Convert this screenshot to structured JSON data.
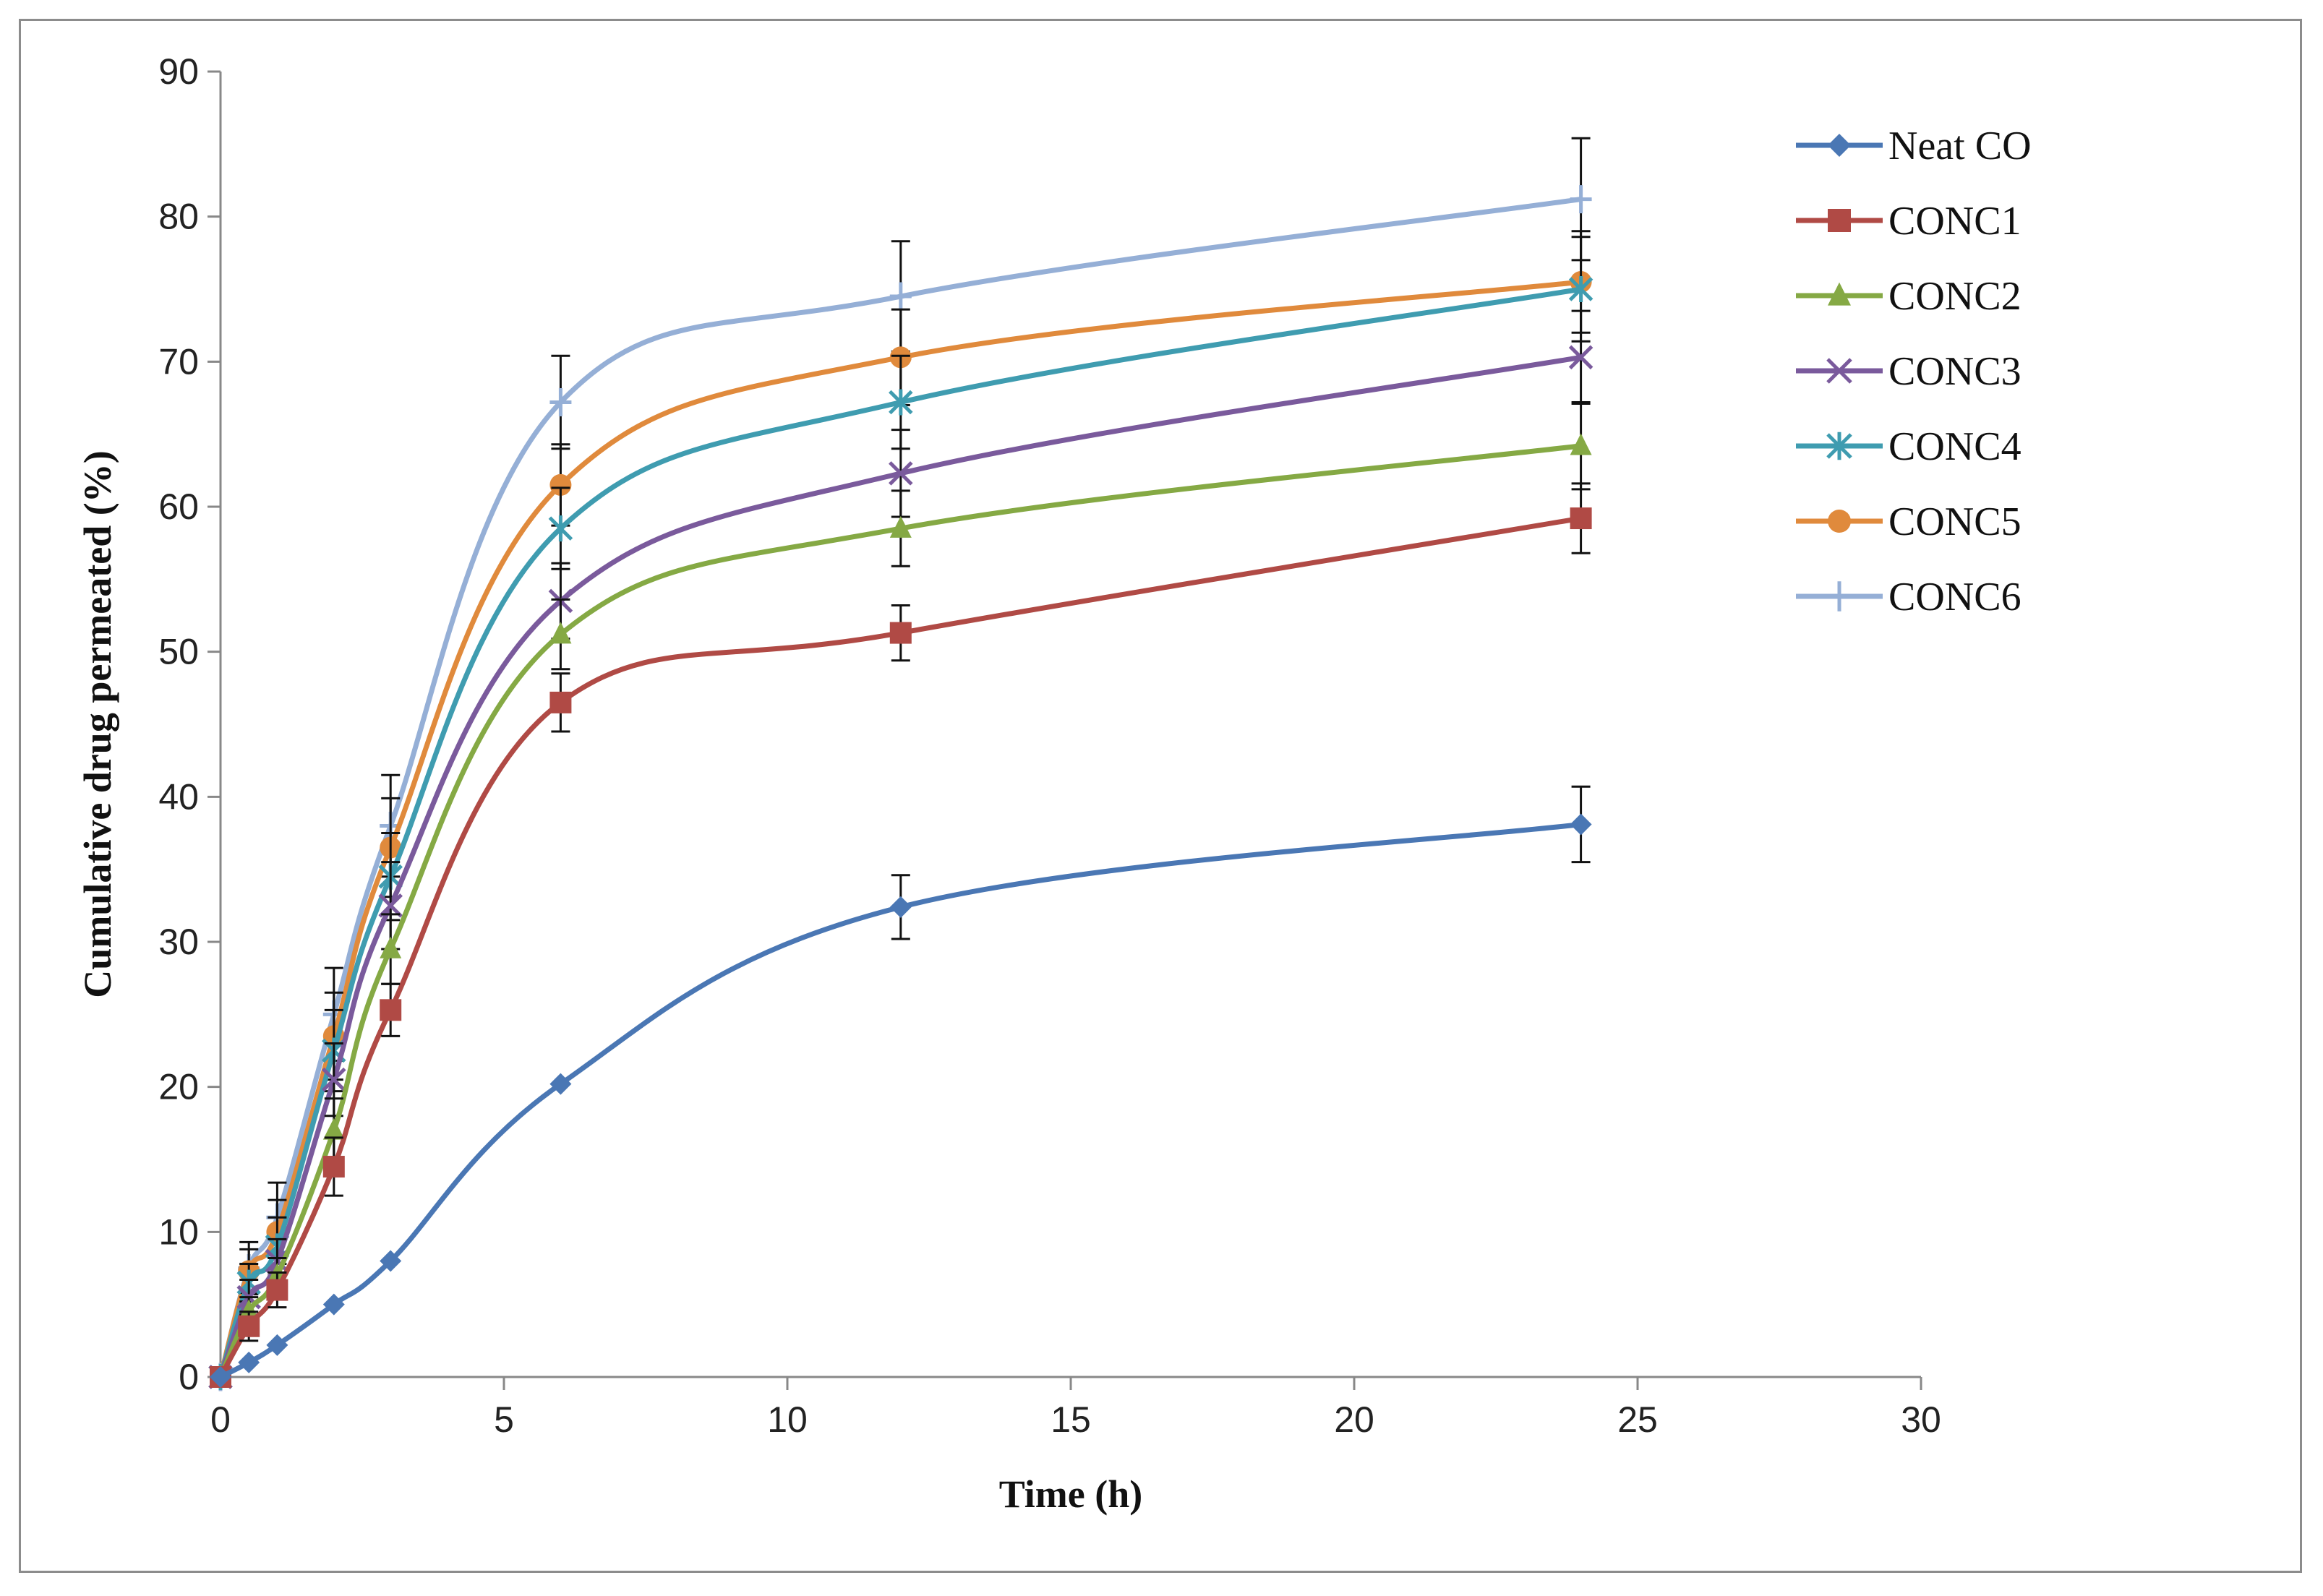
{
  "chart_data": {
    "type": "line",
    "title": "",
    "xlabel": "Time (h)",
    "ylabel": "Cumulative  drug  permeated  (%)",
    "xlim": [
      0,
      30
    ],
    "ylim": [
      0,
      90
    ],
    "xticks": [
      0,
      5,
      10,
      15,
      20,
      25,
      30
    ],
    "yticks": [
      0,
      10,
      20,
      30,
      40,
      50,
      60,
      70,
      80,
      90
    ],
    "xtick_labels": [
      "0",
      "5",
      "10",
      "15",
      "20",
      "25",
      "30"
    ],
    "ytick_labels": [
      "0",
      "10",
      "20",
      "30",
      "40",
      "50",
      "60",
      "70",
      "80",
      "90"
    ],
    "grid": false,
    "legend_position": "right",
    "x": [
      0,
      0.5,
      1,
      2,
      3,
      6,
      12,
      24
    ],
    "series": [
      {
        "name": "Neat CO",
        "color": "#4a77b4",
        "marker": "diamond",
        "values": [
          0,
          1,
          2.2,
          5,
          8,
          20.2,
          32.4,
          38.1
        ],
        "errors": [
          0,
          0,
          0,
          0,
          0,
          0,
          2.2,
          2.6
        ]
      },
      {
        "name": "CONC1",
        "color": "#b04a45",
        "marker": "square",
        "values": [
          0,
          3.5,
          6,
          14.5,
          25.3,
          46.5,
          51.3,
          59.2
        ],
        "errors": [
          0,
          1.0,
          1.2,
          2.0,
          1.8,
          2.0,
          1.9,
          2.4
        ]
      },
      {
        "name": "CONC2",
        "color": "#85a944",
        "marker": "triangle",
        "values": [
          0,
          4.5,
          7,
          17,
          29.5,
          51.2,
          58.5,
          64.2
        ],
        "errors": [
          0,
          1.0,
          1.2,
          2.2,
          2.4,
          2.4,
          2.6,
          3.0
        ]
      },
      {
        "name": "CONC3",
        "color": "#7a5a9c",
        "marker": "x",
        "values": [
          0,
          5.5,
          8,
          20.5,
          32.5,
          53.5,
          62.3,
          70.3
        ],
        "errors": [
          0,
          1.2,
          1.5,
          2.5,
          3.0,
          2.6,
          3.0,
          3.2
        ]
      },
      {
        "name": "CONC4",
        "color": "#3f9cb0",
        "marker": "asterisk",
        "values": [
          0,
          6.5,
          9,
          22.5,
          34.5,
          58.5,
          67.2,
          75
        ],
        "errors": [
          0,
          1.3,
          2.0,
          2.8,
          3.0,
          2.8,
          3.2,
          3.6
        ]
      },
      {
        "name": "CONC5",
        "color": "#e08a3c",
        "marker": "circle",
        "values": [
          0,
          7.3,
          10,
          23.5,
          36.5,
          61.5,
          70.3,
          75.5
        ],
        "errors": [
          0,
          1.5,
          2.2,
          3.0,
          3.4,
          2.8,
          3.3,
          3.5
        ]
      },
      {
        "name": "CONC6",
        "color": "#95afd6",
        "marker": "plus",
        "values": [
          0,
          7.5,
          11,
          25,
          38,
          67.2,
          74.5,
          81.2
        ],
        "errors": [
          0,
          1.8,
          2.4,
          3.2,
          3.5,
          3.2,
          3.8,
          4.2
        ]
      }
    ]
  }
}
